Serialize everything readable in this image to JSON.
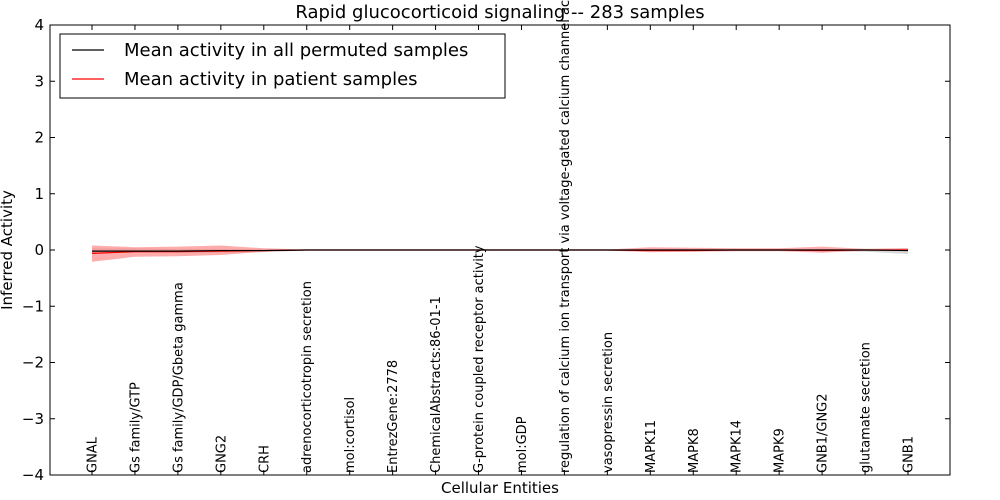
{
  "chart_data": {
    "type": "line",
    "title": "Rapid glucocorticoid signaling -- 283 samples",
    "xlabel": "Cellular Entities",
    "ylabel": "Inferred Activity",
    "ylim": [
      -4,
      4
    ],
    "yticks": [
      4,
      3,
      2,
      1,
      0,
      -1,
      -2,
      -3,
      -4
    ],
    "grid": false,
    "legend_position": "top-left",
    "categories": [
      "GNAL",
      "Gs family/GTP",
      "Gs family/GDP/Gbeta gamma",
      "GNG2",
      "CRH",
      "adrenocorticotropin secretion",
      "mol:cortisol",
      "EntrezGene:2778",
      "ChemicalAbstracts:86-01-1",
      "G-protein coupled receptor activity",
      "mol:GDP",
      "regulation of calcium ion transport via voltage-gated calcium channel activity",
      "vasopressin secretion",
      "MAPK11",
      "MAPK8",
      "MAPK14",
      "MAPK9",
      "GNB1/GNG2",
      "glutamate secretion",
      "GNB1"
    ],
    "series": [
      {
        "name": "Mean activity in all permuted samples",
        "color": "#000000",
        "values": [
          -0.02,
          -0.02,
          -0.02,
          -0.01,
          -0.01,
          0,
          0,
          0,
          0,
          0,
          0,
          0,
          0,
          0,
          0,
          0,
          0,
          0,
          0,
          -0.01
        ],
        "band_lower": [
          -0.06,
          -0.05,
          -0.05,
          -0.05,
          -0.04,
          -0.01,
          -0.01,
          -0.01,
          -0.01,
          -0.01,
          -0.01,
          -0.01,
          -0.01,
          -0.02,
          -0.02,
          -0.02,
          -0.02,
          -0.02,
          -0.03,
          -0.07
        ],
        "band_upper": [
          0.03,
          0.03,
          0.02,
          0.02,
          0.02,
          0.01,
          0.01,
          0.01,
          0.01,
          0.01,
          0.01,
          0.01,
          0.01,
          0.02,
          0.02,
          0.02,
          0.02,
          0.02,
          0.02,
          0.03
        ],
        "band_color": "#c8c8c8"
      },
      {
        "name": "Mean activity in patient samples",
        "color": "#ff0000",
        "values": [
          -0.06,
          -0.03,
          -0.03,
          -0.02,
          -0.01,
          0,
          0,
          0,
          0,
          0,
          0,
          0,
          0,
          -0.01,
          -0.01,
          0,
          0,
          -0.01,
          0,
          0
        ],
        "band_lower": [
          -0.21,
          -0.12,
          -0.11,
          -0.09,
          -0.03,
          -0.01,
          -0.01,
          -0.01,
          -0.01,
          -0.01,
          -0.01,
          -0.01,
          -0.01,
          -0.04,
          -0.03,
          -0.02,
          -0.02,
          -0.05,
          -0.01,
          -0.02
        ],
        "band_upper": [
          0.08,
          0.05,
          0.06,
          0.08,
          0.03,
          0.01,
          0.01,
          0.01,
          0.01,
          0.01,
          0.01,
          0.01,
          0.01,
          0.05,
          0.04,
          0.03,
          0.03,
          0.06,
          0.02,
          0.03
        ],
        "band_color": "#ff7f7f"
      }
    ]
  }
}
